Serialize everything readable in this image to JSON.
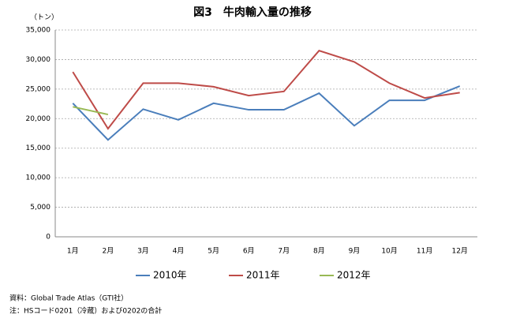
{
  "chart_data": {
    "type": "line",
    "title": "図3　牛肉輸入量の推移",
    "y_label": "（トン）",
    "categories": [
      "1月",
      "2月",
      "3月",
      "4月",
      "5月",
      "6月",
      "7月",
      "8月",
      "9月",
      "10月",
      "11月",
      "12月"
    ],
    "series": [
      {
        "name": "2010年",
        "color": "#4a7ebb",
        "values": [
          22600,
          16400,
          21600,
          19800,
          22600,
          21500,
          21500,
          24300,
          18800,
          23100,
          23100,
          25500
        ]
      },
      {
        "name": "2011年",
        "color": "#be4b48",
        "values": [
          27900,
          18300,
          26000,
          26000,
          25400,
          23900,
          24600,
          31500,
          29600,
          26000,
          23500,
          24400
        ]
      },
      {
        "name": "2012年",
        "color": "#98b954",
        "values": [
          22000,
          20700,
          null,
          null,
          null,
          null,
          null,
          null,
          null,
          null,
          null,
          null
        ]
      }
    ],
    "ylim": [
      0,
      35000
    ],
    "yticks": [
      0,
      {
        "value": 5000,
        "label": "5,000"
      },
      {
        "value": 10000,
        "label": "10,000"
      },
      {
        "value": 15000,
        "label": "15,000"
      },
      {
        "value": 20000,
        "label": "20,000"
      },
      {
        "value": 25000,
        "label": "25,000"
      },
      {
        "value": 30000,
        "label": "30,000"
      },
      {
        "value": 35000,
        "label": "35,000"
      }
    ],
    "grid": true,
    "legend": "bottom",
    "notes": [
      "資料：Global Trade Atlas（GTI社）",
      "注：HSコード0201（冷蔵）および0202の合計"
    ]
  }
}
